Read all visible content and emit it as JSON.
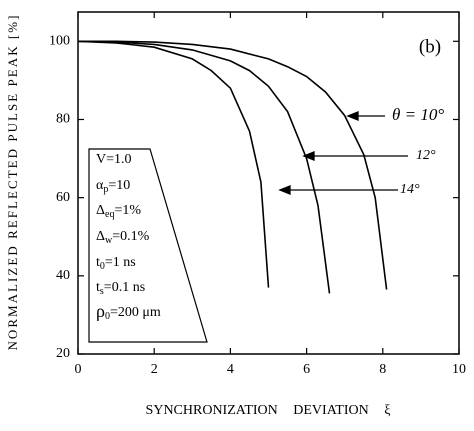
{
  "chart_data": {
    "type": "line",
    "ylabel": "NORMALIZED REFLECTED PULSE PEAK [%]",
    "xlabel": "SYNCHRONIZATION DEVIATION ξ",
    "annotation": "(b)",
    "xlim": [
      0,
      10
    ],
    "xticks": [
      0,
      2,
      4,
      6,
      8,
      10
    ],
    "ylim": [
      20,
      107.5
    ],
    "yticks": [
      20,
      40,
      60,
      80,
      100
    ],
    "color": "#000000",
    "series": [
      {
        "name": "θ = 10°",
        "x": [
          0,
          1,
          2,
          3,
          4,
          5,
          5.5,
          6,
          6.5,
          7,
          7.5,
          7.8,
          8.1
        ],
        "values": [
          100,
          100,
          99.8,
          99.2,
          98,
          95.5,
          93.5,
          91,
          87,
          81,
          71,
          60,
          36.5
        ]
      },
      {
        "name": "12°",
        "x": [
          0,
          1,
          2,
          3,
          4,
          4.5,
          5,
          5.5,
          6,
          6.3,
          6.6
        ],
        "values": [
          100,
          99.8,
          99.2,
          97.8,
          95,
          92.5,
          88.5,
          82,
          70,
          58,
          35.5
        ]
      },
      {
        "name": "14°",
        "x": [
          0,
          1,
          2,
          3,
          3.5,
          4,
          4.5,
          4.8,
          5.0
        ],
        "values": [
          100,
          99.6,
          98.5,
          95.5,
          92.5,
          88,
          77,
          64,
          37
        ]
      }
    ],
    "parameters": [
      {
        "main": "V=1.0"
      },
      {
        "main": "α",
        "sub": "p",
        "rest": "=10"
      },
      {
        "main": "Δ",
        "sub": "eq",
        "rest": "=1%"
      },
      {
        "main": "Δ",
        "sub": "w",
        "rest": "=0.1%"
      },
      {
        "main": "t",
        "sub": "0",
        "rest": "=1 ns"
      },
      {
        "main": "t",
        "sub": "s",
        "rest": "=0.1 ns"
      },
      {
        "main": "ρ",
        "sub": "0",
        "rest": "=200 μm"
      }
    ]
  }
}
